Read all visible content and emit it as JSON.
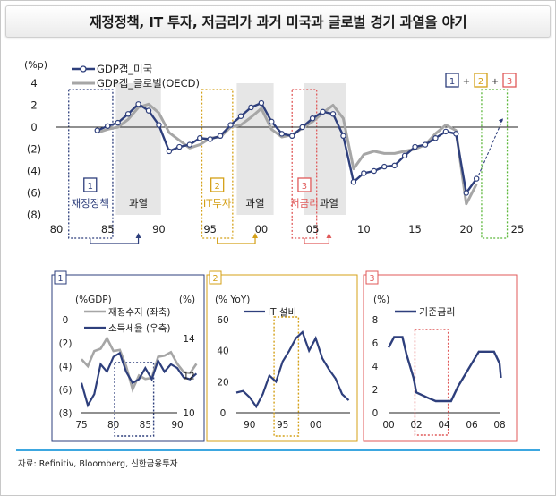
{
  "title": "재정정책, IT 투자, 저금리가 과거 미국과 글로벌 경기 과열을 야기",
  "source": "자료: Refinitiv, Bloomberg, 신한금융투자",
  "colors": {
    "navy": "#2e3f7c",
    "gray": "#a6a6a6",
    "blue_box": "#2e3f7c",
    "gold": "#d4a017",
    "red": "#e05a5a",
    "green": "#5cb83a",
    "shade": "#e6e6e6"
  },
  "chart_data": [
    {
      "type": "line",
      "unit_label": "(%p)",
      "xlim": [
        80,
        25
      ],
      "ylim": [
        -8,
        4
      ],
      "x_ticks": [
        "80",
        "85",
        "90",
        "95",
        "00",
        "05",
        "10",
        "15",
        "20",
        "25"
      ],
      "y_ticks": [
        "4",
        "2",
        "0",
        "(2)",
        "(4)",
        "(6)",
        "(8)"
      ],
      "series": [
        {
          "name": "GDP갭_미국",
          "points": [
            [
              1984,
              -0.3
            ],
            [
              1985,
              0.1
            ],
            [
              1986,
              0.4
            ],
            [
              1987,
              1.2
            ],
            [
              1988,
              2.1
            ],
            [
              1989,
              1.5
            ],
            [
              1990,
              0.2
            ],
            [
              1991,
              -2.2
            ],
            [
              1992,
              -1.8
            ],
            [
              1993,
              -1.6
            ],
            [
              1994,
              -1.0
            ],
            [
              1995,
              -1.1
            ],
            [
              1996,
              -0.8
            ],
            [
              1997,
              0.2
            ],
            [
              1998,
              1.0
            ],
            [
              1999,
              1.8
            ],
            [
              2000,
              2.2
            ],
            [
              2001,
              0.5
            ],
            [
              2002,
              -0.6
            ],
            [
              2003,
              -0.8
            ],
            [
              2004,
              0.0
            ],
            [
              2005,
              0.8
            ],
            [
              2006,
              1.4
            ],
            [
              2007,
              1.2
            ],
            [
              2008,
              -0.8
            ],
            [
              2009,
              -5.0
            ],
            [
              2010,
              -4.2
            ],
            [
              2011,
              -4.0
            ],
            [
              2012,
              -3.6
            ],
            [
              2013,
              -3.5
            ],
            [
              2014,
              -2.6
            ],
            [
              2015,
              -1.8
            ],
            [
              2016,
              -1.6
            ],
            [
              2017,
              -1.0
            ],
            [
              2018,
              -0.4
            ],
            [
              2019,
              -0.6
            ],
            [
              2020,
              -6.0
            ],
            [
              2021,
              -4.7
            ]
          ]
        },
        {
          "name": "GDP갭_글로벌(OECD)",
          "points": [
            [
              1984,
              -0.5
            ],
            [
              1985,
              -0.2
            ],
            [
              1986,
              0.0
            ],
            [
              1987,
              0.7
            ],
            [
              1988,
              1.8
            ],
            [
              1989,
              2.1
            ],
            [
              1990,
              1.3
            ],
            [
              1991,
              -0.5
            ],
            [
              1992,
              -1.2
            ],
            [
              1993,
              -1.9
            ],
            [
              1994,
              -1.6
            ],
            [
              1995,
              -1.0
            ],
            [
              1996,
              -0.9
            ],
            [
              1997,
              0.0
            ],
            [
              1998,
              0.2
            ],
            [
              1999,
              0.9
            ],
            [
              2000,
              1.7
            ],
            [
              2001,
              -0.2
            ],
            [
              2002,
              -0.9
            ],
            [
              2003,
              -0.7
            ],
            [
              2004,
              -0.1
            ],
            [
              2005,
              0.5
            ],
            [
              2006,
              1.3
            ],
            [
              2007,
              2.0
            ],
            [
              2008,
              0.8
            ],
            [
              2009,
              -3.8
            ],
            [
              2010,
              -2.5
            ],
            [
              2011,
              -2.2
            ],
            [
              2012,
              -2.4
            ],
            [
              2013,
              -2.4
            ],
            [
              2014,
              -2.2
            ],
            [
              2015,
              -2.0
            ],
            [
              2016,
              -1.6
            ],
            [
              2017,
              -0.6
            ],
            [
              2018,
              0.2
            ],
            [
              2019,
              -0.3
            ],
            [
              2020,
              -7.0
            ],
            [
              2021,
              -5.2
            ]
          ]
        }
      ],
      "annotations": [
        "재정정책",
        "과열",
        "IT투자",
        "과열",
        "저금리",
        "과열"
      ],
      "box_numbers": [
        "1",
        "2",
        "3"
      ],
      "legend_steps": [
        "1",
        "+",
        "2",
        "+",
        "3"
      ]
    },
    {
      "type": "line",
      "panel_label": "1",
      "left_unit": "(%GDP)",
      "right_unit": "(%)",
      "x_ticks": [
        "75",
        "80",
        "85",
        "90"
      ],
      "y_left_ticks": [
        "0",
        "(2)",
        "(4)",
        "(6)",
        "(8)"
      ],
      "y_right_ticks": [
        "14",
        "12",
        "10"
      ],
      "series": [
        {
          "name": "재정수지 (좌축)",
          "axis": "left",
          "points": [
            [
              1975,
              -3.4
            ],
            [
              1976,
              -4.0
            ],
            [
              1977,
              -2.7
            ],
            [
              1978,
              -2.5
            ],
            [
              1979,
              -1.6
            ],
            [
              1980,
              -2.7
            ],
            [
              1981,
              -2.6
            ],
            [
              1982,
              -4.0
            ],
            [
              1983,
              -6.0
            ],
            [
              1984,
              -4.8
            ],
            [
              1985,
              -5.1
            ],
            [
              1986,
              -5.0
            ],
            [
              1987,
              -3.2
            ],
            [
              1988,
              -3.1
            ],
            [
              1989,
              -2.8
            ],
            [
              1990,
              -3.8
            ],
            [
              1991,
              -4.5
            ],
            [
              1992,
              -4.6
            ],
            [
              1993,
              -3.8
            ]
          ]
        },
        {
          "name": "소득세율 (우축)",
          "axis": "right",
          "points": [
            [
              1975,
              11.6
            ],
            [
              1976,
              10.4
            ],
            [
              1977,
              11.0
            ],
            [
              1978,
              12.6
            ],
            [
              1979,
              12.2
            ],
            [
              1980,
              13.0
            ],
            [
              1981,
              13.2
            ],
            [
              1982,
              12.2
            ],
            [
              1983,
              11.6
            ],
            [
              1984,
              11.8
            ],
            [
              1985,
              12.4
            ],
            [
              1986,
              11.8
            ],
            [
              1987,
              12.8
            ],
            [
              1988,
              12.2
            ],
            [
              1989,
              12.6
            ],
            [
              1990,
              12.4
            ],
            [
              1991,
              11.9
            ],
            [
              1992,
              11.8
            ],
            [
              1993,
              12.1
            ]
          ]
        }
      ]
    },
    {
      "type": "line",
      "panel_label": "2",
      "unit": "(% YoY)",
      "x_ticks": [
        "90",
        "95",
        "00"
      ],
      "y_ticks": [
        "60",
        "40",
        "20",
        "0"
      ],
      "series": [
        {
          "name": "IT 설비",
          "points": [
            [
              1988,
              13
            ],
            [
              1989,
              14
            ],
            [
              1990,
              10
            ],
            [
              1991,
              4
            ],
            [
              1992,
              12
            ],
            [
              1993,
              24
            ],
            [
              1994,
              20
            ],
            [
              1995,
              33
            ],
            [
              1996,
              40
            ],
            [
              1997,
              48
            ],
            [
              1998,
              52
            ],
            [
              1999,
              40
            ],
            [
              2000,
              48
            ],
            [
              2001,
              35
            ],
            [
              2002,
              28
            ],
            [
              2003,
              22
            ],
            [
              2004,
              12
            ],
            [
              2005,
              8
            ]
          ]
        }
      ]
    },
    {
      "type": "line",
      "panel_label": "3",
      "unit": "(%)",
      "x_ticks": [
        "00",
        "02",
        "04",
        "06",
        "08"
      ],
      "y_ticks": [
        "8",
        "6",
        "4",
        "2",
        "0"
      ],
      "series": [
        {
          "name": "기준금리",
          "points": [
            [
              2000,
              5.6
            ],
            [
              2000.4,
              6.5
            ],
            [
              2001,
              6.5
            ],
            [
              2001.3,
              5.0
            ],
            [
              2001.8,
              3.0
            ],
            [
              2002,
              1.75
            ],
            [
              2002.9,
              1.25
            ],
            [
              2003.4,
              1.0
            ],
            [
              2004.5,
              1.0
            ],
            [
              2005,
              2.25
            ],
            [
              2005.5,
              3.25
            ],
            [
              2006,
              4.25
            ],
            [
              2006.5,
              5.25
            ],
            [
              2007.6,
              5.25
            ],
            [
              2008,
              4.25
            ],
            [
              2008.1,
              3.0
            ]
          ]
        }
      ]
    }
  ]
}
